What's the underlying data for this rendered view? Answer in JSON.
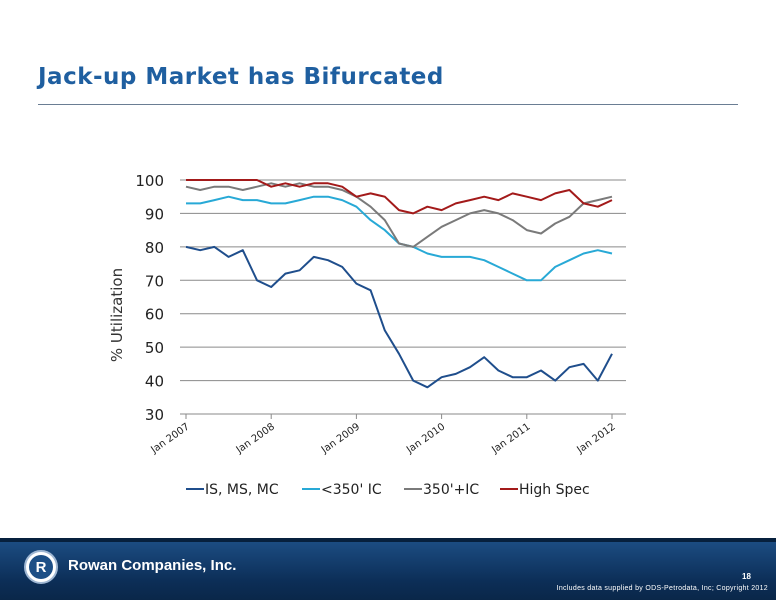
{
  "slide": {
    "title": "Jack-up Market has Bifurcated",
    "footer": {
      "company": "Rowan Companies, Inc.",
      "page_number": "18",
      "credit": "Includes data supplied by ODS-Petrodata, Inc; Copyright 2012"
    }
  },
  "chart_data": {
    "type": "line",
    "title": "",
    "xlabel": "",
    "ylabel": "% Utilization",
    "ylim": [
      30,
      100
    ],
    "yticks": [
      30,
      40,
      50,
      60,
      70,
      80,
      90,
      100
    ],
    "xticks": [
      "Jan 2007",
      "Jan 2008",
      "Jan 2009",
      "Jan 2010",
      "Jan 2011",
      "Jan 2012"
    ],
    "grid": true,
    "legend": "bottom",
    "x": [
      "Jan 2007",
      "Mar 2007",
      "May 2007",
      "Jul 2007",
      "Sep 2007",
      "Nov 2007",
      "Jan 2008",
      "Mar 2008",
      "May 2008",
      "Jul 2008",
      "Sep 2008",
      "Nov 2008",
      "Jan 2009",
      "Mar 2009",
      "May 2009",
      "Jul 2009",
      "Sep 2009",
      "Nov 2009",
      "Jan 2010",
      "Mar 2010",
      "May 2010",
      "Jul 2010",
      "Sep 2010",
      "Nov 2010",
      "Jan 2011",
      "Mar 2011",
      "May 2011",
      "Jul 2011",
      "Sep 2011",
      "Nov 2011",
      "Jan 2012"
    ],
    "series": [
      {
        "name": "IS, MS, MC",
        "color": "#1f4e8c",
        "values": [
          80,
          79,
          80,
          77,
          79,
          70,
          68,
          72,
          73,
          77,
          76,
          74,
          69,
          67,
          55,
          48,
          40,
          38,
          41,
          42,
          44,
          47,
          43,
          41,
          41,
          43,
          40,
          44,
          45,
          40,
          48
        ]
      },
      {
        "name": "<350' IC",
        "color": "#28a9d6",
        "values": [
          93,
          93,
          94,
          95,
          94,
          94,
          93,
          93,
          94,
          95,
          95,
          94,
          92,
          88,
          85,
          81,
          80,
          78,
          77,
          77,
          77,
          76,
          74,
          72,
          70,
          70,
          74,
          76,
          78,
          79,
          78
        ]
      },
      {
        "name": "350'+IC",
        "color": "#7a7a7a",
        "values": [
          98,
          97,
          98,
          98,
          97,
          98,
          99,
          98,
          99,
          98,
          98,
          97,
          95,
          92,
          88,
          81,
          80,
          83,
          86,
          88,
          90,
          91,
          90,
          88,
          85,
          84,
          87,
          89,
          93,
          94,
          95
        ]
      },
      {
        "name": "High Spec",
        "color": "#a31a1a",
        "values": [
          100,
          100,
          100,
          100,
          100,
          100,
          98,
          99,
          98,
          99,
          99,
          98,
          95,
          96,
          95,
          91,
          90,
          92,
          91,
          93,
          94,
          95,
          94,
          96,
          95,
          94,
          96,
          97,
          93,
          92,
          94
        ]
      }
    ]
  }
}
